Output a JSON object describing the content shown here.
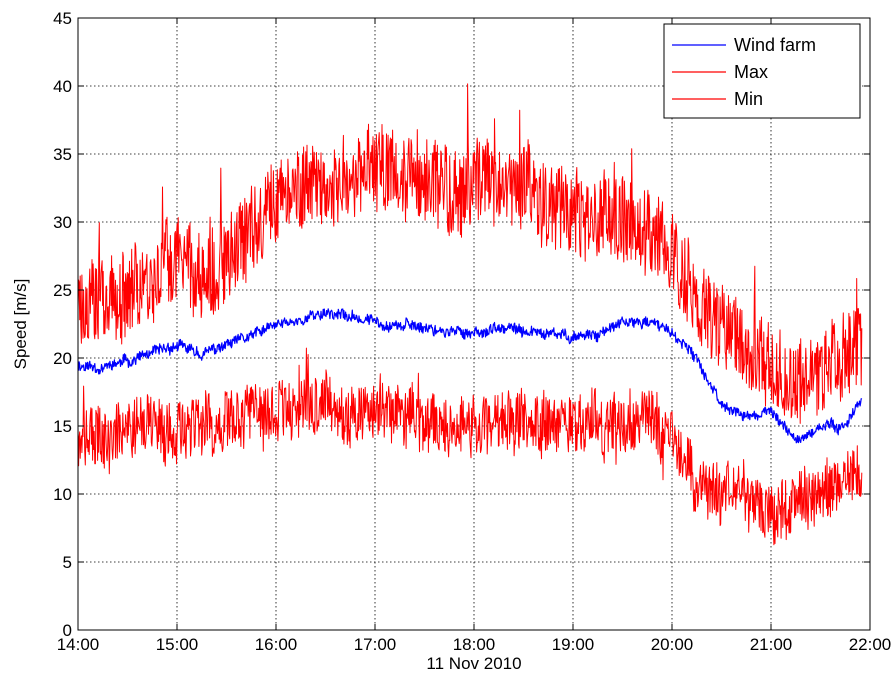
{
  "chart_data": {
    "type": "line",
    "title": "",
    "xlabel": "11 Nov 2010",
    "ylabel": "Speed [m/s]",
    "xlim": [
      "14:00",
      "22:00"
    ],
    "ylim": [
      0,
      45
    ],
    "x_ticks": [
      "14:00",
      "15:00",
      "16:00",
      "17:00",
      "18:00",
      "19:00",
      "20:00",
      "21:00",
      "22:00"
    ],
    "y_ticks": [
      "0",
      "5",
      "10",
      "15",
      "20",
      "25",
      "30",
      "35",
      "40",
      "45"
    ],
    "grid": "on",
    "legend_position": "top-right",
    "x": [
      "14:00",
      "14:15",
      "14:30",
      "14:45",
      "15:00",
      "15:15",
      "15:30",
      "15:45",
      "16:00",
      "16:15",
      "16:30",
      "16:45",
      "17:00",
      "17:15",
      "17:30",
      "17:45",
      "18:00",
      "18:15",
      "18:30",
      "18:45",
      "19:00",
      "19:15",
      "19:30",
      "19:45",
      "20:00",
      "20:15",
      "20:30",
      "20:45",
      "21:00",
      "21:15",
      "21:30",
      "21:45",
      "21:55"
    ],
    "series": [
      {
        "name": "Wind farm",
        "color": "#0000ff",
        "values": [
          19.5,
          19.3,
          19.8,
          20.3,
          20.9,
          20.3,
          20.9,
          21.6,
          22.4,
          22.8,
          23.4,
          23.0,
          22.7,
          22.4,
          22.3,
          21.9,
          21.9,
          22.1,
          22.0,
          21.7,
          21.6,
          21.8,
          22.5,
          22.7,
          21.9,
          19.8,
          16.7,
          15.6,
          16.1,
          13.9,
          14.9,
          15.1,
          17.0
        ]
      },
      {
        "name": "Max",
        "color": "#ff0000",
        "values": [
          24.5,
          24.3,
          25.2,
          26.0,
          27.5,
          26.0,
          27.0,
          29.0,
          31.5,
          32.5,
          33.5,
          33.0,
          34.0,
          33.5,
          33.0,
          32.5,
          33.0,
          33.0,
          32.5,
          31.5,
          31.0,
          30.5,
          30.0,
          29.5,
          28.0,
          24.0,
          22.0,
          21.0,
          19.5,
          18.0,
          19.0,
          20.0,
          21.0
        ]
      },
      {
        "name": "Min",
        "color": "#ff0000",
        "values": [
          14.5,
          14.0,
          14.5,
          15.0,
          15.0,
          14.8,
          15.2,
          15.6,
          16.2,
          16.6,
          16.8,
          16.3,
          16.0,
          15.6,
          15.5,
          15.3,
          15.3,
          15.3,
          15.1,
          15.0,
          15.1,
          15.3,
          15.6,
          15.4,
          14.5,
          10.0,
          10.5,
          10.0,
          8.0,
          9.5,
          10.5,
          11.0,
          12.0
        ]
      }
    ]
  }
}
